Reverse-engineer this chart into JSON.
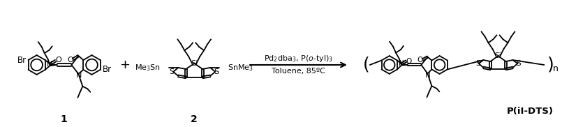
{
  "background_color": "#ffffff",
  "arrow_text_line1": "Pd$_2$dba$_3$, P($o$-tyl)$_3$",
  "arrow_text_line2": "Toluene, 85ºC",
  "compound1_label": "1",
  "compound2_label": "2",
  "product_label": "P(iI-DTS)"
}
